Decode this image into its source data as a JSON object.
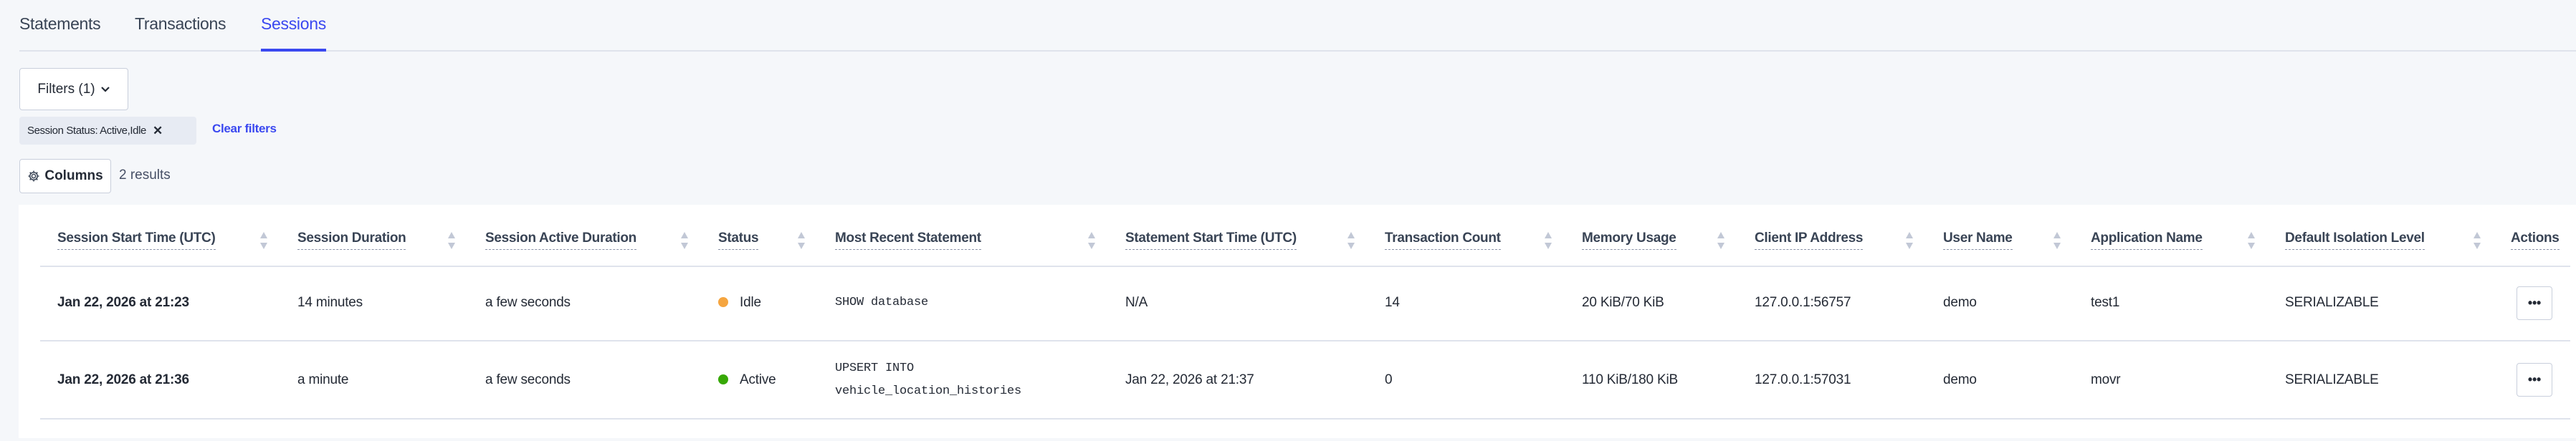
{
  "tabs": [
    {
      "label": "Statements",
      "active": false
    },
    {
      "label": "Transactions",
      "active": false
    },
    {
      "label": "Sessions",
      "active": true
    }
  ],
  "filters_button": {
    "label": "Filters (1)",
    "icon": "chevron-down-icon"
  },
  "active_filter": {
    "label": "Session Status: Active,Idle",
    "remove_icon": "close-icon"
  },
  "clear_filters": "Clear filters",
  "columns_button": {
    "label": "Columns",
    "icon": "gear-icon"
  },
  "results_count": "2 results",
  "colors": {
    "accent": "#3a48f0",
    "idle": "#f5a540",
    "active": "#37a806"
  },
  "table": {
    "columns": [
      "Session Start Time (UTC)",
      "Session Duration",
      "Session Active Duration",
      "Status",
      "Most Recent Statement",
      "Statement Start Time (UTC)",
      "Transaction Count",
      "Memory Usage",
      "Client IP Address",
      "User Name",
      "Application Name",
      "Default Isolation Level",
      "Actions"
    ],
    "rows": [
      {
        "start": "Jan 22, 2026 at 21:23",
        "duration": "14 minutes",
        "active_duration": "a few seconds",
        "status": "Idle",
        "statement": "SHOW database",
        "stmt_start": "N/A",
        "txn_count": "14",
        "memory": "20 KiB/70 KiB",
        "ip": "127.0.0.1:56757",
        "user": "demo",
        "app": "test1",
        "isolation": "SERIALIZABLE",
        "actions": "•••"
      },
      {
        "start": "Jan 22, 2026 at 21:36",
        "duration": "a minute",
        "active_duration": "a few seconds",
        "status": "Active",
        "statement": "UPSERT INTO\nvehicle_location_histories",
        "stmt_start": "Jan 22, 2026 at 21:37",
        "txn_count": "0",
        "memory": "110 KiB/180 KiB",
        "ip": "127.0.0.1:57031",
        "user": "demo",
        "app": "movr",
        "isolation": "SERIALIZABLE",
        "actions": "•••"
      }
    ]
  }
}
